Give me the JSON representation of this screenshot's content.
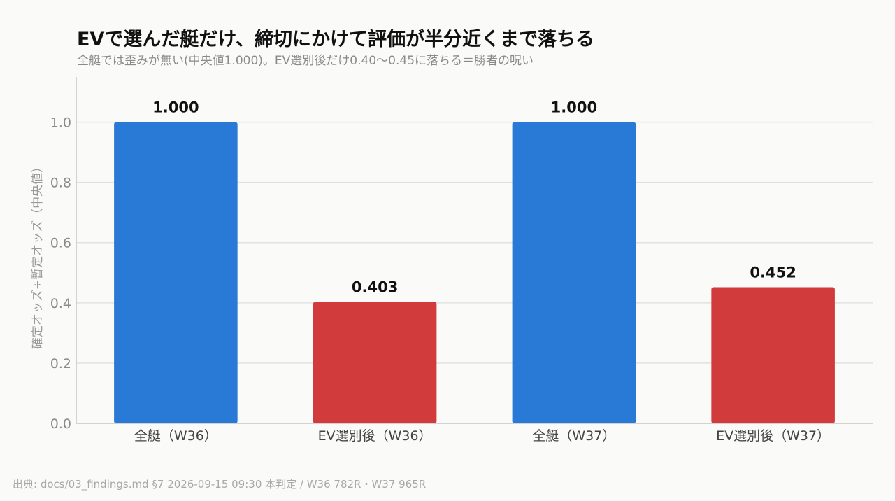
{
  "chart_data": {
    "type": "bar",
    "title": "EVで選んだ艇だけ、締切にかけて評価が半分近くまで落ちる",
    "subtitle": "全艇では歪みが無い(中央値1.000)。EV選別後だけ0.40〜0.45に落ちる＝勝者の呪い",
    "xlabel": "",
    "ylabel": "確定オッズ÷暫定オッズ（中央値）",
    "ylim": [
      0,
      1.15
    ],
    "yticks": [
      0.0,
      0.2,
      0.4,
      0.6,
      0.8,
      1.0
    ],
    "ytick_labels": [
      "0.0",
      "0.2",
      "0.4",
      "0.6",
      "0.8",
      "1.0"
    ],
    "grid": true,
    "categories": [
      "全艇（W36）",
      "EV選別後（W36）",
      "全艇（W37）",
      "EV選別後（W37）"
    ],
    "values": [
      1.0,
      0.403,
      1.0,
      0.452
    ],
    "value_labels": [
      "1.000",
      "0.403",
      "1.000",
      "0.452"
    ],
    "bar_colors": [
      "#2979d6",
      "#d13b3b",
      "#2979d6",
      "#d13b3b"
    ]
  },
  "footer": {
    "source": "出典: docs/03_findings.md §7 2026-09-15 09:30 本判定 / W36 782R・W37 965R"
  },
  "colors": {
    "background": "#fafaf8",
    "grid": "#e2e2e2",
    "axis": "#c4c4c4"
  }
}
